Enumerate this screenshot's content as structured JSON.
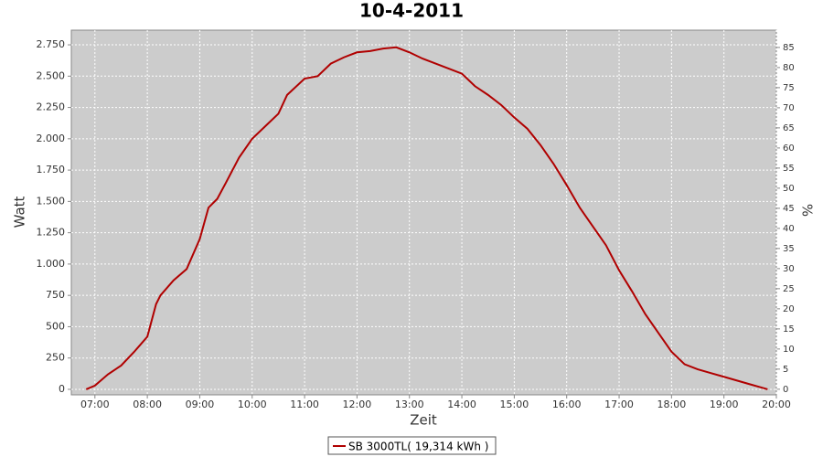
{
  "chart_data": {
    "type": "line",
    "title": "10-4-2011",
    "x_label": "Zeit",
    "y_label": "Watt",
    "y2_label": "%",
    "x": [
      "06:50",
      "07:00",
      "07:15",
      "07:30",
      "07:45",
      "08:00",
      "08:10",
      "08:15",
      "08:30",
      "08:45",
      "09:00",
      "09:10",
      "09:20",
      "09:30",
      "09:45",
      "10:00",
      "10:15",
      "10:30",
      "10:40",
      "11:00",
      "11:15",
      "11:30",
      "11:45",
      "12:00",
      "12:15",
      "12:30",
      "12:45",
      "13:00",
      "13:15",
      "13:30",
      "13:45",
      "14:00",
      "14:15",
      "14:30",
      "14:45",
      "15:00",
      "15:15",
      "15:30",
      "15:45",
      "16:00",
      "16:15",
      "16:30",
      "16:45",
      "17:00",
      "17:15",
      "17:30",
      "17:45",
      "18:00",
      "18:15",
      "18:30",
      "18:45",
      "19:00",
      "19:15",
      "19:30",
      "19:45",
      "19:50"
    ],
    "series": [
      {
        "name": "SB 3000TL( 19,314 kWh )",
        "color": "#b00000",
        "values": [
          0,
          30,
          120,
          190,
          300,
          420,
          680,
          750,
          870,
          960,
          1200,
          1450,
          1520,
          1650,
          1850,
          2000,
          2100,
          2200,
          2350,
          2480,
          2500,
          2600,
          2650,
          2690,
          2700,
          2720,
          2730,
          2690,
          2640,
          2600,
          2560,
          2520,
          2420,
          2350,
          2270,
          2170,
          2080,
          1950,
          1800,
          1630,
          1450,
          1300,
          1150,
          950,
          780,
          600,
          450,
          300,
          200,
          160,
          130,
          100,
          70,
          40,
          10,
          0
        ]
      }
    ],
    "xlim": [
      "06:33",
      "20:00"
    ],
    "xticks": [
      "07:00",
      "08:00",
      "09:00",
      "10:00",
      "11:00",
      "12:00",
      "13:00",
      "14:00",
      "15:00",
      "16:00",
      "17:00",
      "18:00",
      "19:00",
      "20:00"
    ],
    "ylim": [
      -44,
      2867
    ],
    "yticks": [
      0,
      250,
      500,
      750,
      {
        "value": 1000,
        "label": "1.000"
      },
      {
        "value": 1250,
        "label": "1.250"
      },
      {
        "value": 1500,
        "label": "1.500"
      },
      {
        "value": 1750,
        "label": "1.750"
      },
      {
        "value": 2000,
        "label": "2.000"
      },
      {
        "value": 2250,
        "label": "2.250"
      },
      {
        "value": 2500,
        "label": "2.500"
      },
      {
        "value": 2750,
        "label": "2.750"
      }
    ],
    "y2lim": [
      -1.4,
      89.3
    ],
    "y2ticks": [
      0,
      5,
      10,
      15,
      20,
      25,
      30,
      35,
      40,
      45,
      50,
      55,
      60,
      65,
      70,
      75,
      80,
      85
    ],
    "grid": true,
    "plot_background": "#cccccc",
    "legend_position": "bottom"
  }
}
